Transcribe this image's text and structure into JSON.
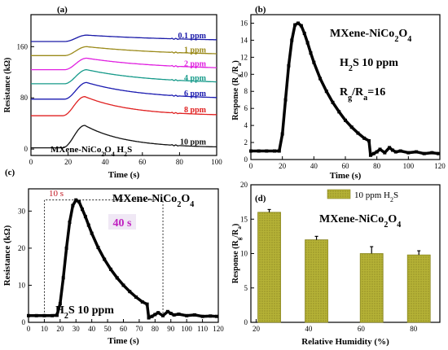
{
  "chart_data": [
    {
      "panel_label": "(a)",
      "type": "line",
      "xlabel": "Time (s)",
      "ylabel": "Resistance (kΩ)",
      "xlim": [
        0,
        100
      ],
      "ylim": [
        -10,
        210
      ],
      "xticks": [
        0,
        20,
        40,
        60,
        80,
        100
      ],
      "yticks": [
        0,
        80,
        160
      ],
      "annotation": "MXene-NiCo₂O₄ H₂S",
      "series": [
        {
          "name": "0.1 ppm",
          "color": "#1a1aa8",
          "baseline": 168,
          "amplitude": 10,
          "rise_start": 18,
          "peak_time": 30,
          "tau": 55
        },
        {
          "name": "1 ppm",
          "color": "#9b8a1a",
          "baseline": 146,
          "amplitude": 14,
          "rise_start": 18,
          "peak_time": 30,
          "tau": 45
        },
        {
          "name": "2 ppm",
          "color": "#e020e0",
          "baseline": 124,
          "amplitude": 18,
          "rise_start": 18,
          "peak_time": 30,
          "tau": 40
        },
        {
          "name": "4 ppm",
          "color": "#169a8a",
          "baseline": 102,
          "amplitude": 22,
          "rise_start": 18,
          "peak_time": 30,
          "tau": 35
        },
        {
          "name": "6 ppm",
          "color": "#1a1ab0",
          "baseline": 78,
          "amplitude": 26,
          "rise_start": 18,
          "peak_time": 30,
          "tau": 30
        },
        {
          "name": "8 ppm",
          "color": "#e02020",
          "baseline": 52,
          "amplitude": 30,
          "rise_start": 17,
          "peak_time": 29,
          "tau": 25
        },
        {
          "name": "10 ppm",
          "color": "#111111",
          "baseline": 2,
          "amplitude": 35,
          "rise_start": 17,
          "peak_time": 29,
          "tau": 22
        }
      ]
    },
    {
      "panel_label": "(b)",
      "type": "scatter",
      "xlabel": "Time (s)",
      "ylabel": "Response (Rg/Ra)",
      "xlim": [
        0,
        120
      ],
      "ylim": [
        0,
        17
      ],
      "xticks": [
        0,
        20,
        40,
        60,
        80,
        100,
        120
      ],
      "yticks": [
        0,
        2,
        4,
        6,
        8,
        10,
        12,
        14,
        16
      ],
      "title": "MXene-NiCo₂O₄",
      "annotations": [
        "H₂S 10 ppm",
        "Rg/Ra=16"
      ],
      "series": [
        {
          "name": "",
          "color": "#000000",
          "x": [
            0,
            5,
            10,
            15,
            18,
            20,
            22,
            24,
            26,
            28,
            30,
            32,
            34,
            36,
            38,
            40,
            44,
            48,
            52,
            56,
            60,
            64,
            68,
            72,
            75,
            76,
            78,
            80,
            82,
            85,
            88,
            90,
            92,
            95,
            100,
            105,
            110,
            115,
            119
          ],
          "y": [
            1.0,
            1.0,
            1.0,
            1.0,
            1.0,
            3.0,
            7.0,
            11.0,
            14.0,
            15.8,
            16.0,
            15.7,
            14.8,
            13.7,
            12.5,
            11.4,
            9.5,
            8.0,
            6.7,
            5.6,
            4.6,
            3.8,
            3.1,
            2.5,
            2.2,
            0.5,
            0.7,
            0.9,
            1.2,
            0.8,
            1.4,
            1.1,
            0.9,
            1.0,
            0.8,
            0.9,
            0.7,
            0.8,
            0.7
          ]
        }
      ]
    },
    {
      "panel_label": "(c)",
      "type": "scatter",
      "xlabel": "Time (s)",
      "ylabel": "Resistance (kΩ)",
      "xlim": [
        0,
        120
      ],
      "ylim": [
        0,
        36
      ],
      "xticks": [
        0,
        10,
        20,
        30,
        40,
        50,
        60,
        70,
        80,
        90,
        100,
        110,
        120
      ],
      "yticks": [
        0,
        10,
        20,
        30
      ],
      "title": "MXene-NiCo₂O₄",
      "annotations": [
        "10 s",
        "40 s",
        "H₂S 10 ppm"
      ],
      "response_window": [
        10,
        30
      ],
      "recovery_window": [
        30,
        85
      ],
      "series": [
        {
          "name": "",
          "color": "#000000",
          "x": [
            0,
            5,
            10,
            15,
            18,
            20,
            22,
            24,
            26,
            28,
            30,
            32,
            34,
            36,
            38,
            40,
            44,
            48,
            52,
            56,
            60,
            64,
            68,
            72,
            75,
            76,
            78,
            80,
            82,
            85,
            88,
            90,
            92,
            95,
            100,
            105,
            110,
            115,
            119
          ],
          "y": [
            1.8,
            1.8,
            1.8,
            1.8,
            1.9,
            5.0,
            12.0,
            20.0,
            27.0,
            31.5,
            33.0,
            32.5,
            30.5,
            28.5,
            26.2,
            24.0,
            20.2,
            17.0,
            14.3,
            12.0,
            10.0,
            8.3,
            6.8,
            5.5,
            4.9,
            1.2,
            1.6,
            2.1,
            2.6,
            1.8,
            2.9,
            2.4,
            2.0,
            2.2,
            1.8,
            2.0,
            1.6,
            1.7,
            1.6
          ]
        }
      ]
    },
    {
      "panel_label": "(d)",
      "type": "bar",
      "xlabel": "Relative Humidity (%)",
      "ylabel": "Response (Rg/Ra)",
      "xlim": [
        18,
        90
      ],
      "ylim": [
        0,
        20
      ],
      "xticks": [
        20,
        40,
        60,
        80
      ],
      "yticks": [
        0,
        5,
        10,
        15,
        20
      ],
      "title": "MXene-NiCo₂O₄",
      "legend": [
        "10 ppm H₂S"
      ],
      "legend_position": "top-right",
      "bar_color": "#b5b236",
      "x": [
        25,
        43,
        64,
        82
      ],
      "values": [
        16.0,
        12.0,
        10.0,
        9.8
      ],
      "errors": [
        0.4,
        0.5,
        1.0,
        0.6
      ]
    }
  ]
}
